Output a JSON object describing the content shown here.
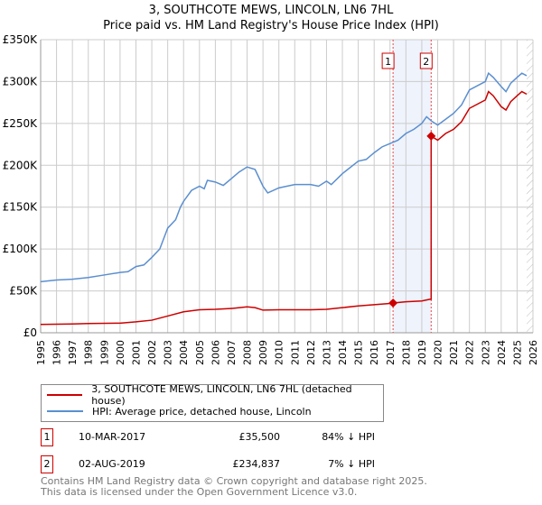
{
  "chart_data": {
    "type": "line",
    "title": "3, SOUTHCOTE MEWS, LINCOLN, LN6 7HL",
    "subtitle": "Price paid vs. HM Land Registry's House Price Index (HPI)",
    "xlim": [
      1995,
      2026
    ],
    "ylim": [
      0,
      350000
    ],
    "y_ticks": [
      {
        "v": 0,
        "label": "£0"
      },
      {
        "v": 50000,
        "label": "£50K"
      },
      {
        "v": 100000,
        "label": "£100K"
      },
      {
        "v": 150000,
        "label": "£150K"
      },
      {
        "v": 200000,
        "label": "£200K"
      },
      {
        "v": 250000,
        "label": "£250K"
      },
      {
        "v": 300000,
        "label": "£300K"
      },
      {
        "v": 350000,
        "label": "£350K"
      }
    ],
    "x_ticks": [
      "1995",
      "1996",
      "1997",
      "1998",
      "1999",
      "2000",
      "2001",
      "2002",
      "2003",
      "2004",
      "2005",
      "2006",
      "2007",
      "2008",
      "2009",
      "2010",
      "2011",
      "2012",
      "2013",
      "2014",
      "2015",
      "2016",
      "2017",
      "2018",
      "2019",
      "2020",
      "2021",
      "2022",
      "2023",
      "2024",
      "2025",
      "2026"
    ],
    "grid": true,
    "series": [
      {
        "name": "3, SOUTHCOTE MEWS, LINCOLN, LN6 7HL (detached house)",
        "color": "#cc0000",
        "x": [
          1995,
          1997,
          1998,
          2000,
          2001,
          2002,
          2003,
          2004,
          2005,
          2006,
          2007,
          2008,
          2008.5,
          2009,
          2010,
          2011,
          2012,
          2013,
          2014,
          2015,
          2016,
          2017,
          2017.19,
          2018,
          2019,
          2019.5,
          2019.59,
          2019.59,
          2020,
          2020.5,
          2021,
          2021.5,
          2022,
          2022.5,
          2023,
          2023.2,
          2023.5,
          2024,
          2024.3,
          2024.6,
          2025,
          2025.3,
          2025.6
        ],
        "y": [
          10000,
          10500,
          11000,
          11500,
          13000,
          15000,
          20000,
          25000,
          27500,
          28000,
          29000,
          31000,
          30000,
          27000,
          27500,
          27500,
          27500,
          28000,
          30000,
          32000,
          33500,
          35000,
          35500,
          37000,
          38000,
          40000,
          40000,
          234837,
          230000,
          238000,
          243000,
          252000,
          268000,
          273000,
          278000,
          288000,
          283000,
          270000,
          266000,
          276000,
          283000,
          288000,
          285000
        ]
      },
      {
        "name": "HPI: Average price, detached house, Lincoln",
        "color": "#5b8fd0",
        "x": [
          1995,
          1996,
          1997,
          1998,
          1999,
          2000,
          2000.5,
          2001,
          2001.5,
          2002,
          2002.5,
          2003,
          2003.5,
          2003.8,
          2004,
          2004.5,
          2005,
          2005.3,
          2005.5,
          2006,
          2006.5,
          2007,
          2007.5,
          2008,
          2008.5,
          2009,
          2009.3,
          2010,
          2011,
          2012,
          2012.5,
          2013,
          2013.3,
          2014,
          2015,
          2015.5,
          2016,
          2016.5,
          2017,
          2017.5,
          2018,
          2018.5,
          2019,
          2019.3,
          2019.6,
          2020,
          2020.5,
          2021,
          2021.5,
          2022,
          2022.5,
          2023,
          2023.2,
          2023.5,
          2024,
          2024.3,
          2024.6,
          2025,
          2025.3,
          2025.6
        ],
        "y": [
          61000,
          63000,
          64000,
          66000,
          69000,
          72000,
          73000,
          79000,
          81000,
          90000,
          100000,
          125000,
          135000,
          150000,
          157000,
          170000,
          175000,
          172000,
          182000,
          180000,
          176000,
          184000,
          192000,
          198000,
          195000,
          175000,
          167000,
          173000,
          177000,
          177000,
          175000,
          181000,
          177000,
          190000,
          205000,
          207000,
          215000,
          222000,
          226000,
          230000,
          238000,
          243000,
          250000,
          258000,
          253000,
          248000,
          255000,
          262000,
          272000,
          290000,
          295000,
          300000,
          310000,
          305000,
          294000,
          288000,
          298000,
          305000,
          310000,
          307000
        ]
      }
    ],
    "annotations": [
      {
        "label": "1",
        "x": 2017.19,
        "y": 35500
      },
      {
        "label": "2",
        "x": 2019.59,
        "y": 234837
      }
    ],
    "shaded_range": [
      2017.19,
      2019.59
    ],
    "forecast_hatch_from": 2025.6,
    "legend_position": "below"
  },
  "legend": {
    "red": "3, SOUTHCOTE MEWS, LINCOLN, LN6 7HL (detached house)",
    "blue": "HPI: Average price, detached house, Lincoln"
  },
  "sales": [
    {
      "num": "1",
      "date": "10-MAR-2017",
      "price": "£35,500",
      "hpi": "84% ↓ HPI"
    },
    {
      "num": "2",
      "date": "02-AUG-2019",
      "price": "£234,837",
      "hpi": "7% ↓ HPI"
    }
  ],
  "footer": {
    "line1": "Contains HM Land Registry data © Crown copyright and database right 2025.",
    "line2": "This data is licensed under the Open Government Licence v3.0."
  }
}
